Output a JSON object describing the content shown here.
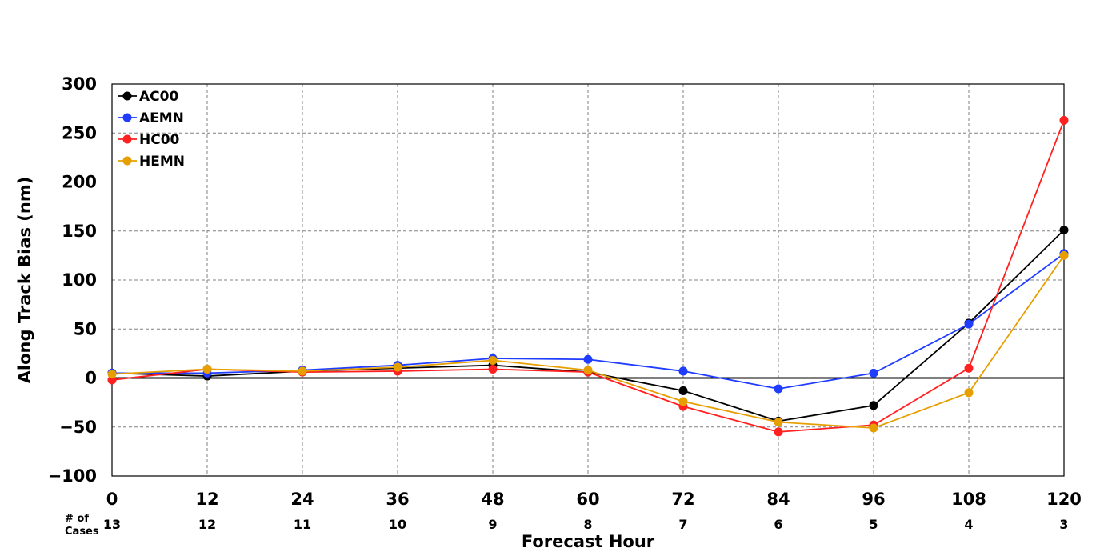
{
  "chart_data": {
    "type": "line",
    "title": "",
    "xlabel": "Forecast Hour",
    "ylabel": "Along Track Bias (nm)",
    "x": [
      0,
      12,
      24,
      36,
      48,
      60,
      72,
      84,
      96,
      108,
      120
    ],
    "x_tick_labels": [
      "0",
      "12",
      "24",
      "36",
      "48",
      "60",
      "72",
      "84",
      "96",
      "108",
      "120"
    ],
    "xlim": [
      0,
      120
    ],
    "ylim": [
      -100,
      300
    ],
    "y_ticks": [
      -100,
      -50,
      0,
      50,
      100,
      150,
      200,
      250,
      300
    ],
    "y_tick_labels": [
      "−100",
      "−50",
      "0",
      "50",
      "100",
      "150",
      "200",
      "250",
      "300"
    ],
    "grid": true,
    "zero_line": true,
    "legend_position": "top-left",
    "cases_title_line1": "# of",
    "cases_title_line2": "Cases",
    "cases": [
      "13",
      "12",
      "11",
      "10",
      "9",
      "8",
      "7",
      "6",
      "5",
      "4",
      "3"
    ],
    "series": [
      {
        "name": "AC00",
        "color": "#000000",
        "values": [
          5,
          2,
          7,
          10,
          13,
          6,
          -13,
          -44,
          -28,
          56,
          151
        ]
      },
      {
        "name": "AEMN",
        "color": "#1f3cff",
        "values": [
          5,
          5,
          8,
          13,
          20,
          19,
          7,
          -11,
          5,
          55,
          127
        ]
      },
      {
        "name": "HC00",
        "color": "#ff2020",
        "values": [
          -2,
          9,
          6,
          7,
          9,
          6,
          -29,
          -55,
          -48,
          10,
          263
        ]
      },
      {
        "name": "HEMN",
        "color": "#e69f00",
        "values": [
          4,
          9,
          7,
          11,
          18,
          8,
          -24,
          -45,
          -51,
          -15,
          125
        ]
      }
    ]
  }
}
